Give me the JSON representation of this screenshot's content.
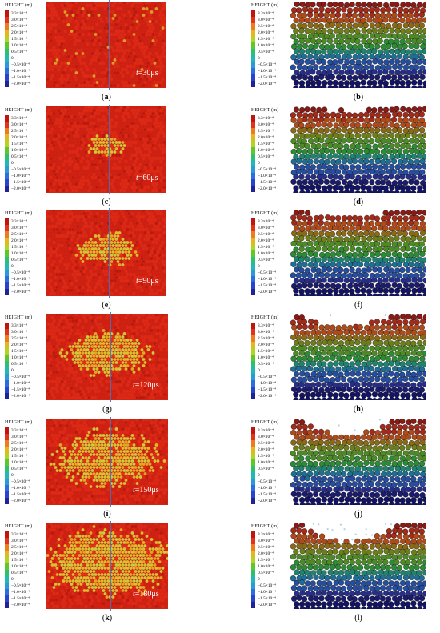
{
  "legend": {
    "title": "HEIGHT (m)",
    "entries": [
      {
        "label": "3.3×10⁻⁴",
        "color": "#c0140c"
      },
      {
        "label": "3.0×10⁻⁴",
        "color": "#e2321a"
      },
      {
        "label": "2.5×10⁻⁴",
        "color": "#f07a1e"
      },
      {
        "label": "2.0×10⁻⁴",
        "color": "#e4b81c"
      },
      {
        "label": "1.5×10⁻⁴",
        "color": "#b4d424"
      },
      {
        "label": "1.0×10⁻⁴",
        "color": "#5cc82c"
      },
      {
        "label": "0.5×10⁻⁴",
        "color": "#2ebf72"
      },
      {
        "label": "0",
        "color": "#22b8b4"
      },
      {
        "label": "−0.5×10⁻⁴",
        "color": "#2a9ad8"
      },
      {
        "label": "−1.0×10⁻⁴",
        "color": "#2c6ee0"
      },
      {
        "label": "−1.5×10⁻⁴",
        "color": "#2a42d0"
      },
      {
        "label": "−2.0×10⁻⁴",
        "color": "#1e2496"
      }
    ]
  },
  "rows": [
    {
      "time_var": "t",
      "time_value": "=30μs",
      "left_caption": "a",
      "right_caption": "b",
      "crater": 0.0
    },
    {
      "time_var": "t",
      "time_value": "=60μs",
      "left_caption": "c",
      "right_caption": "d",
      "crater": 0.2
    },
    {
      "time_var": "t",
      "time_value": "=90μs",
      "left_caption": "e",
      "right_caption": "f",
      "crater": 0.4
    },
    {
      "time_var": "t",
      "time_value": "=120μs",
      "left_caption": "g",
      "right_caption": "h",
      "crater": 0.6
    },
    {
      "time_var": "t",
      "time_value": "=150μs",
      "left_caption": "i",
      "right_caption": "j",
      "crater": 0.8
    },
    {
      "time_var": "t",
      "time_value": "=180μs",
      "left_caption": "k",
      "right_caption": "l",
      "crater": 1.0
    }
  ],
  "colors": {
    "surface_red": "#d42414",
    "crater_yellow": "#d6c234",
    "divider": "#4a6fb5"
  }
}
